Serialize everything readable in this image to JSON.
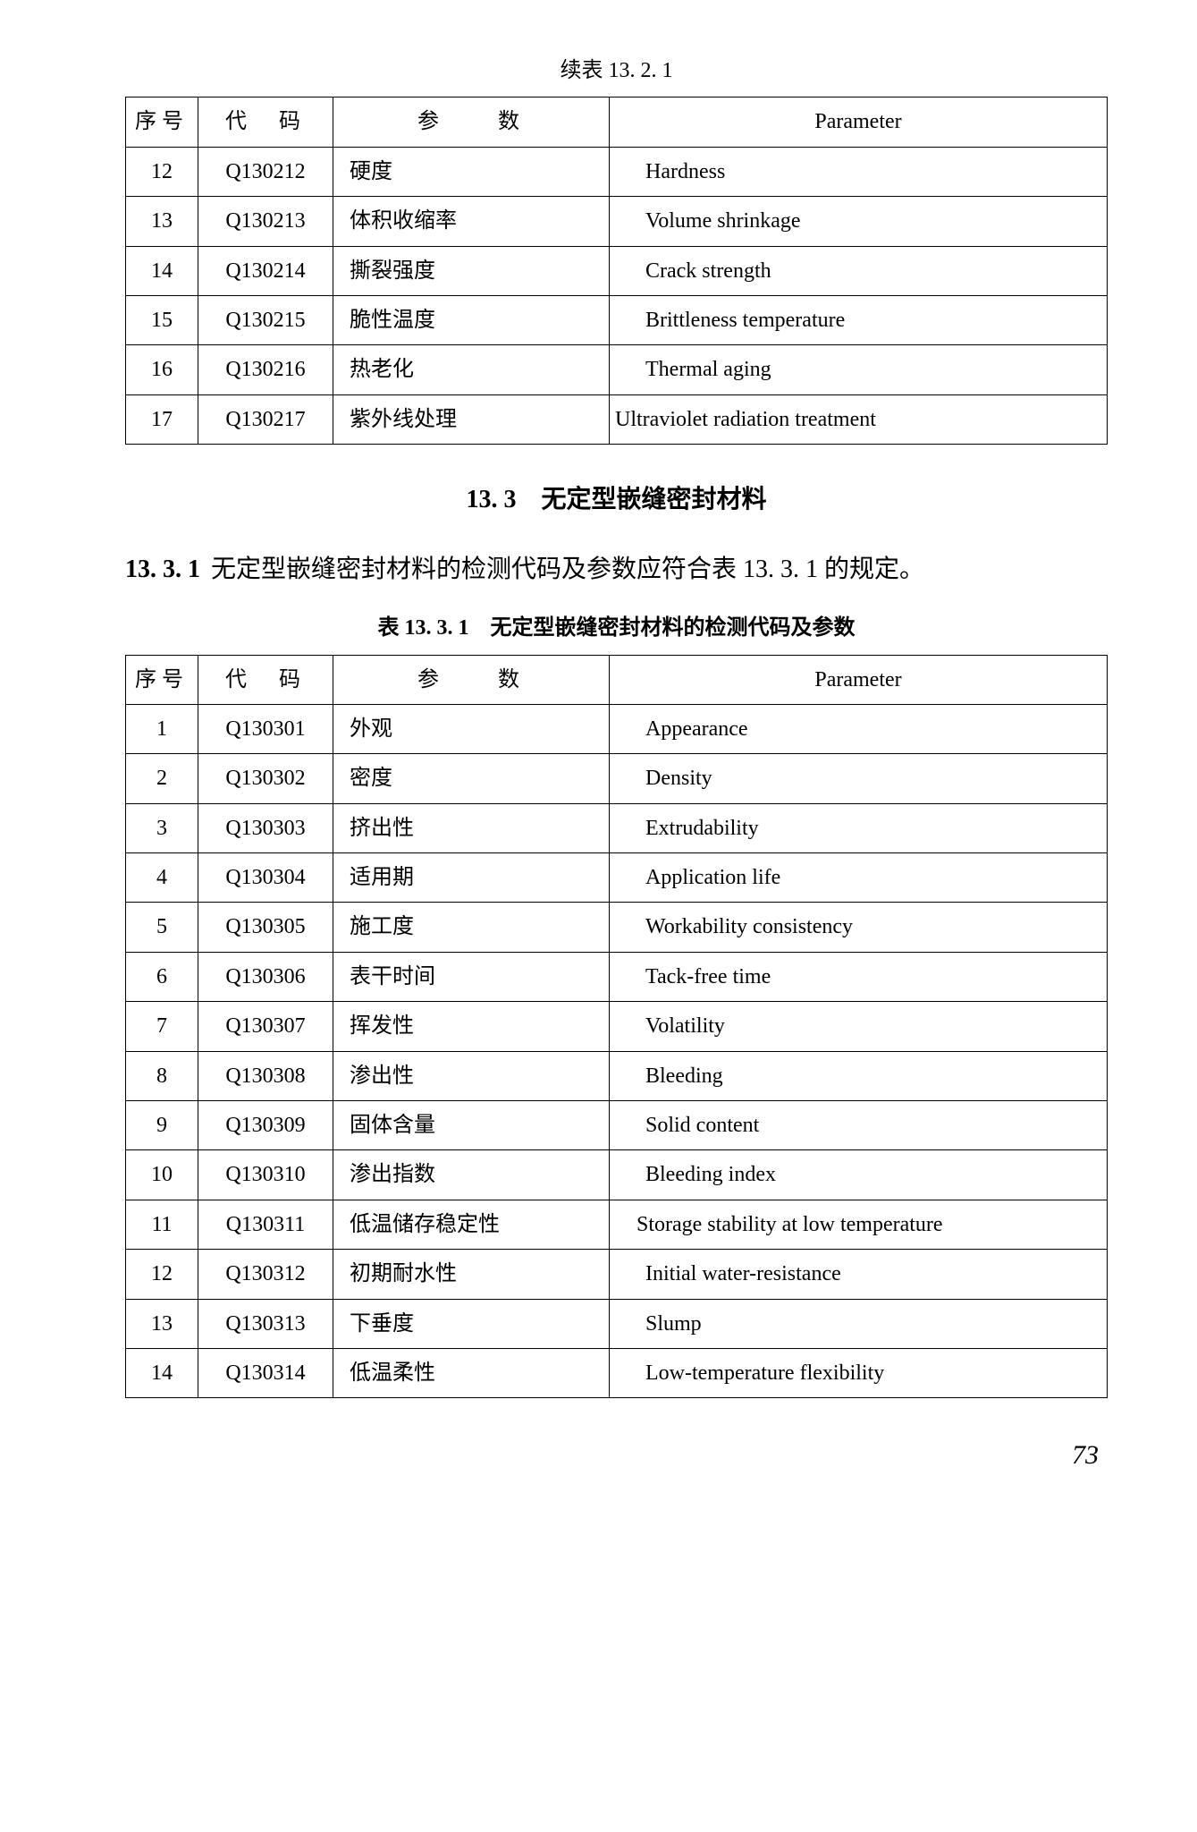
{
  "table1": {
    "caption": "续表 13. 2. 1",
    "headers": {
      "seq": "序号",
      "code": "代　码",
      "param_cn": "参　　数",
      "param_en": "Parameter"
    },
    "rows": [
      {
        "seq": "12",
        "code": "Q130212",
        "cn": "硬度",
        "en": "Hardness"
      },
      {
        "seq": "13",
        "code": "Q130213",
        "cn": "体积收缩率",
        "en": "Volume shrinkage"
      },
      {
        "seq": "14",
        "code": "Q130214",
        "cn": "撕裂强度",
        "en": "Crack strength"
      },
      {
        "seq": "15",
        "code": "Q130215",
        "cn": "脆性温度",
        "en": "Brittleness temperature"
      },
      {
        "seq": "16",
        "code": "Q130216",
        "cn": "热老化",
        "en": "Thermal aging"
      },
      {
        "seq": "17",
        "code": "Q130217",
        "cn": "紫外线处理",
        "en": "Ultraviolet radiation treatment"
      }
    ]
  },
  "section": {
    "heading": "13. 3　无定型嵌缝密封材料",
    "clause_number": "13. 3. 1",
    "clause_text": "无定型嵌缝密封材料的检测代码及参数应符合表 13. 3. 1 的规定。"
  },
  "table2": {
    "caption": "表 13. 3. 1　无定型嵌缝密封材料的检测代码及参数",
    "headers": {
      "seq": "序号",
      "code": "代　码",
      "param_cn": "参　　数",
      "param_en": "Parameter"
    },
    "rows": [
      {
        "seq": "1",
        "code": "Q130301",
        "cn": "外观",
        "en": "Appearance"
      },
      {
        "seq": "2",
        "code": "Q130302",
        "cn": "密度",
        "en": "Density"
      },
      {
        "seq": "3",
        "code": "Q130303",
        "cn": "挤出性",
        "en": "Extrudability"
      },
      {
        "seq": "4",
        "code": "Q130304",
        "cn": "适用期",
        "en": "Application life"
      },
      {
        "seq": "5",
        "code": "Q130305",
        "cn": "施工度",
        "en": "Workability consistency"
      },
      {
        "seq": "6",
        "code": "Q130306",
        "cn": "表干时间",
        "en": "Tack-free time"
      },
      {
        "seq": "7",
        "code": "Q130307",
        "cn": "挥发性",
        "en": "Volatility"
      },
      {
        "seq": "8",
        "code": "Q130308",
        "cn": "渗出性",
        "en": "Bleeding"
      },
      {
        "seq": "9",
        "code": "Q130309",
        "cn": "固体含量",
        "en": "Solid content"
      },
      {
        "seq": "10",
        "code": "Q130310",
        "cn": "渗出指数",
        "en": "Bleeding index"
      },
      {
        "seq": "11",
        "code": "Q130311",
        "cn": "低温储存稳定性",
        "en": "　Storage stability at low temperature"
      },
      {
        "seq": "12",
        "code": "Q130312",
        "cn": "初期耐水性",
        "en": "Initial water-resistance"
      },
      {
        "seq": "13",
        "code": "Q130313",
        "cn": "下垂度",
        "en": "Slump"
      },
      {
        "seq": "14",
        "code": "Q130314",
        "cn": "低温柔性",
        "en": "Low-temperature flexibility"
      }
    ]
  },
  "page_number": "73"
}
